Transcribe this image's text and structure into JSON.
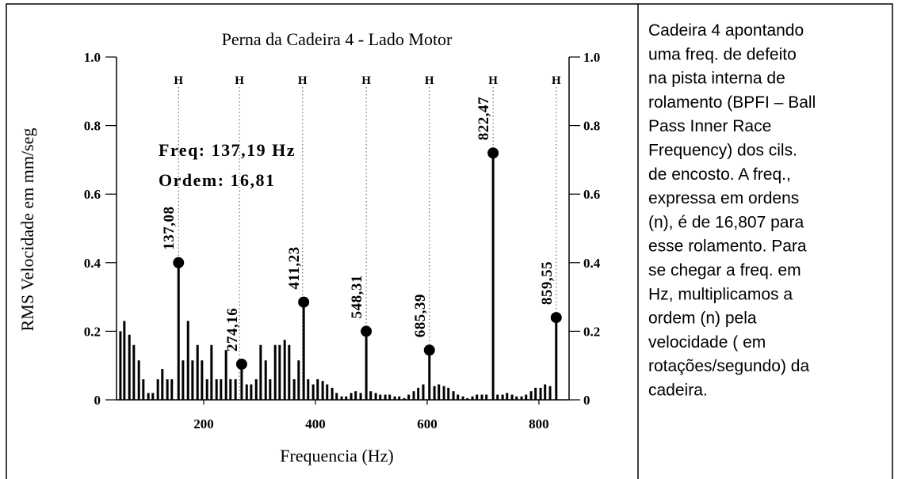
{
  "chart_data": {
    "type": "bar",
    "title": "Perna da Cadeira 4 - Lado Motor",
    "xlabel": "Frequencia (Hz)",
    "ylabel": "RMS Velocidade em mm/seg",
    "color": "#000000",
    "x": [
      51,
      58,
      67,
      75,
      84,
      92,
      101,
      109,
      118,
      126,
      135,
      143,
      163,
      172,
      180,
      189,
      197,
      206,
      214,
      223,
      231,
      240,
      248,
      257,
      277,
      285,
      294,
      302,
      311,
      319,
      328,
      336,
      345,
      353,
      362,
      370,
      387,
      396,
      404,
      413,
      421,
      430,
      438,
      447,
      455,
      464,
      472,
      481,
      499,
      508,
      516,
      525,
      533,
      542,
      550,
      559,
      567,
      576,
      584,
      593,
      613,
      621,
      630,
      638,
      647,
      655,
      664,
      672,
      681,
      689,
      698,
      706,
      726,
      735,
      743,
      752,
      760,
      769,
      777,
      786,
      794,
      803,
      811,
      820
    ],
    "values": [
      0.2,
      0.23,
      0.19,
      0.16,
      0.115,
      0.06,
      0.02,
      0.02,
      0.06,
      0.09,
      0.06,
      0.06,
      0.115,
      0.23,
      0.115,
      0.16,
      0.115,
      0.06,
      0.16,
      0.06,
      0.06,
      0.145,
      0.06,
      0.06,
      0.045,
      0.045,
      0.06,
      0.16,
      0.115,
      0.06,
      0.16,
      0.16,
      0.175,
      0.16,
      0.06,
      0.115,
      0.06,
      0.045,
      0.06,
      0.055,
      0.045,
      0.035,
      0.02,
      0.01,
      0.01,
      0.02,
      0.025,
      0.02,
      0.025,
      0.02,
      0.015,
      0.015,
      0.015,
      0.01,
      0.01,
      0.005,
      0.015,
      0.025,
      0.035,
      0.045,
      0.04,
      0.045,
      0.04,
      0.035,
      0.025,
      0.015,
      0.01,
      0.005,
      0.01,
      0.015,
      0.015,
      0.015,
      0.015,
      0.015,
      0.02,
      0.015,
      0.01,
      0.01,
      0.015,
      0.025,
      0.035,
      0.035,
      0.045,
      0.04
    ],
    "peaks": {
      "x": [
        155,
        268,
        379,
        491,
        604,
        718,
        831
      ],
      "values": [
        0.4,
        0.104,
        0.285,
        0.2,
        0.145,
        0.72,
        0.24
      ],
      "labels": [
        "137,08",
        "274,16",
        "411,23",
        "548,31",
        "685,39",
        "822,47",
        "859,55"
      ]
    },
    "cursors": {
      "x": [
        155,
        264,
        377,
        491,
        604,
        718,
        831
      ],
      "labels": [
        "H",
        "H",
        "H",
        "H",
        "H",
        "H",
        "H"
      ]
    },
    "annotations": [
      "Freq: 137,19 Hz",
      "Ordem: 16,81"
    ],
    "xlim": [
      44,
      854
    ],
    "xticks": [
      200,
      400,
      600,
      800
    ],
    "ylim": [
      0,
      1
    ],
    "yticks": [
      0,
      0.2,
      0.4,
      0.6,
      0.8,
      {
        "value": 1,
        "label": "1.0"
      }
    ]
  },
  "side_text": [
    "Cadeira 4 apontando",
    "uma freq. de defeito",
    "na pista interna de",
    "rolamento (BPFI – Ball",
    "Pass Inner Race",
    "Frequency) dos cils.",
    "de encosto. A freq.,",
    "expressa em ordens",
    "(n), é de 16,807 para",
    "esse rolamento. Para",
    "se chegar a freq. em",
    "Hz, multiplicamos a",
    "ordem (n) pela",
    "velocidade ( em",
    "rotações/segundo) da",
    "cadeira."
  ]
}
